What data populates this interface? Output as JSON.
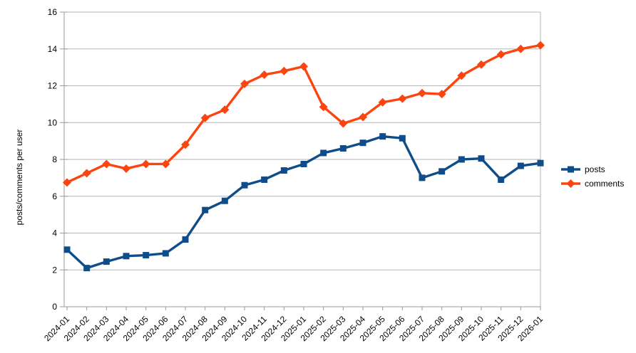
{
  "chart_data": {
    "type": "line",
    "title": "",
    "xlabel": "",
    "ylabel": "posts/comments per user",
    "ylim": [
      0,
      16
    ],
    "ytick_step": 2,
    "grid": true,
    "legend_position": "right",
    "categories": [
      "2024-01",
      "2024-02",
      "2024-03",
      "2024-04",
      "2024-05",
      "2024-06",
      "2024-07",
      "2024-08",
      "2024-09",
      "2024-10",
      "2024-11",
      "2024-12",
      "2025-01",
      "2025-02",
      "2025-03",
      "2025-04",
      "2025-05",
      "2025-06",
      "2025-07",
      "2025-08",
      "2025-09",
      "2025-10",
      "2025-11",
      "2025-12",
      "2026-01"
    ],
    "series": [
      {
        "name": "posts",
        "marker": "square",
        "color": "#0e4c8a",
        "values": [
          3.1,
          2.1,
          2.45,
          2.75,
          2.8,
          2.9,
          3.65,
          5.25,
          5.75,
          6.6,
          6.9,
          7.4,
          7.75,
          8.35,
          8.6,
          8.9,
          9.25,
          9.15,
          7.0,
          7.35,
          8.0,
          8.05,
          6.9,
          7.65,
          7.8
        ]
      },
      {
        "name": "comments",
        "marker": "diamond",
        "color": "#FB4511",
        "values": [
          6.75,
          7.25,
          7.75,
          7.5,
          7.75,
          7.75,
          8.8,
          10.25,
          10.7,
          12.1,
          12.6,
          12.8,
          13.05,
          10.85,
          9.95,
          10.3,
          11.1,
          11.3,
          11.6,
          11.55,
          12.55,
          13.15,
          13.7,
          14.0,
          14.2
        ]
      }
    ]
  },
  "ui_colors": {
    "grid": "#b6b6b6",
    "axis": "#9a9a9a",
    "text": "#000000",
    "background": "#ffffff"
  }
}
